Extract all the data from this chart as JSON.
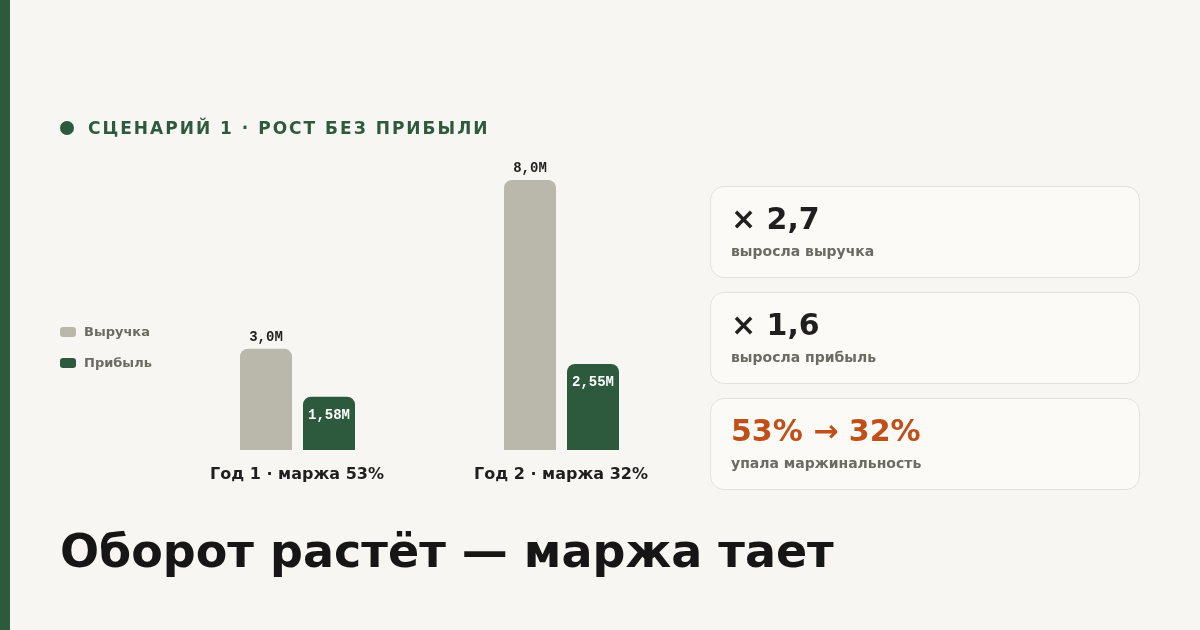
{
  "chart_data": {
    "type": "bar",
    "title": "Оборот растёт — маржа тает",
    "subtitle": "СЦЕНАРИЙ 1 · РОСТ БЕЗ ПРИБЫЛИ",
    "categories": [
      "Год 1 · маржа 53%",
      "Год 2 · маржа 32%"
    ],
    "series": [
      {
        "name": "Выручка",
        "color": "#b9b8ab",
        "values": [
          3.0,
          8.0
        ],
        "value_labels": [
          "3,0M",
          "8,0M"
        ]
      },
      {
        "name": "Прибыль",
        "color": "#2d5a3d",
        "values": [
          1.58,
          2.55
        ],
        "value_labels": [
          "1,58M",
          "2,55M"
        ]
      }
    ],
    "legend": "left",
    "grid": false,
    "annotations": [
      "× 2,7",
      "выросла выручка",
      "× 1,6",
      "выросла прибыль",
      "53% → 32%",
      "упала маржинальность"
    ]
  }
}
